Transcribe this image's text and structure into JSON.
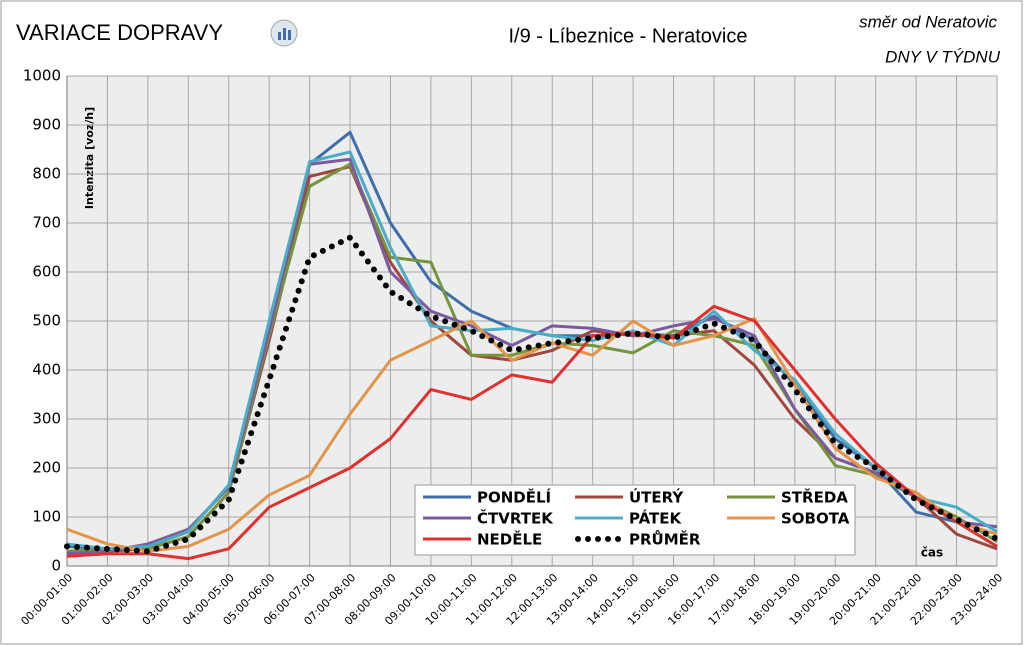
{
  "chart_data": {
    "type": "line",
    "title": "VARIACE DOPRAVY",
    "subtitle": "I/9 - Líbeznice - Neratovice",
    "annotations": [
      "směr od Neratovic",
      "DNY V TÝDNU"
    ],
    "y_label": "Intenzita  [voz/h]",
    "x_label": "čas",
    "categories": [
      "00:00-01:00",
      "01:00-02:00",
      "02:00-03:00",
      "03:00-04:00",
      "04:00-05:00",
      "05:00-06:00",
      "06:00-07:00",
      "07:00-08:00",
      "08:00-09:00",
      "09:00-10:00",
      "10:00-11:00",
      "11:00-12:00",
      "12:00-13:00",
      "13:00-14:00",
      "14:00-15:00",
      "15:00-16:00",
      "16:00-17:00",
      "17:00-18:00",
      "18:00-19:00",
      "19:00-20:00",
      "20:00-21:00",
      "21:00-22:00",
      "22:00-23:00",
      "23:00-24:00"
    ],
    "ylim": [
      0,
      1000
    ],
    "yticks": [
      0,
      100,
      200,
      300,
      400,
      500,
      600,
      700,
      800,
      900,
      1000
    ],
    "grid": true,
    "series": [
      {
        "name": "PONDĚLÍ",
        "color": "#3f6eaa",
        "values": [
          40,
          35,
          40,
          70,
          165,
          490,
          820,
          885,
          700,
          580,
          520,
          485,
          470,
          470,
          475,
          470,
          510,
          460,
          370,
          260,
          200,
          110,
          90,
          40
        ]
      },
      {
        "name": "ÚTERÝ",
        "color": "#a0463f",
        "values": [
          25,
          30,
          35,
          60,
          150,
          460,
          795,
          815,
          620,
          500,
          430,
          420,
          440,
          480,
          470,
          470,
          480,
          410,
          300,
          220,
          190,
          140,
          65,
          35
        ]
      },
      {
        "name": "STŘEDA",
        "color": "#76943c",
        "values": [
          30,
          35,
          35,
          60,
          150,
          470,
          775,
          820,
          630,
          620,
          430,
          430,
          455,
          450,
          435,
          480,
          470,
          450,
          320,
          205,
          185,
          140,
          100,
          50
        ]
      },
      {
        "name": "ČTVRTEK",
        "color": "#7b5b9e",
        "values": [
          25,
          30,
          45,
          75,
          160,
          480,
          820,
          830,
          600,
          520,
          490,
          450,
          490,
          485,
          470,
          490,
          505,
          470,
          320,
          220,
          190,
          140,
          90,
          80
        ]
      },
      {
        "name": "PÁTEK",
        "color": "#4bacc6",
        "values": [
          45,
          35,
          40,
          70,
          165,
          500,
          825,
          845,
          650,
          490,
          480,
          485,
          470,
          460,
          480,
          450,
          520,
          440,
          380,
          270,
          200,
          140,
          120,
          70
        ]
      },
      {
        "name": "SOBOTA",
        "color": "#e3934a",
        "values": [
          75,
          45,
          30,
          40,
          75,
          145,
          185,
          310,
          420,
          460,
          500,
          420,
          455,
          430,
          500,
          450,
          470,
          505,
          370,
          240,
          180,
          150,
          90,
          65
        ]
      },
      {
        "name": "NEDĚLE",
        "color": "#e0302f",
        "values": [
          20,
          25,
          25,
          15,
          35,
          120,
          160,
          200,
          260,
          360,
          340,
          390,
          375,
          470,
          475,
          465,
          530,
          500,
          400,
          300,
          210,
          140,
          90,
          40
        ]
      },
      {
        "name": "PRŮMĚR",
        "color": "#000000",
        "dotted": true,
        "values": [
          40,
          35,
          30,
          55,
          135,
          380,
          630,
          670,
          560,
          510,
          480,
          440,
          455,
          465,
          475,
          465,
          495,
          460,
          360,
          250,
          200,
          135,
          95,
          55
        ]
      }
    ]
  }
}
